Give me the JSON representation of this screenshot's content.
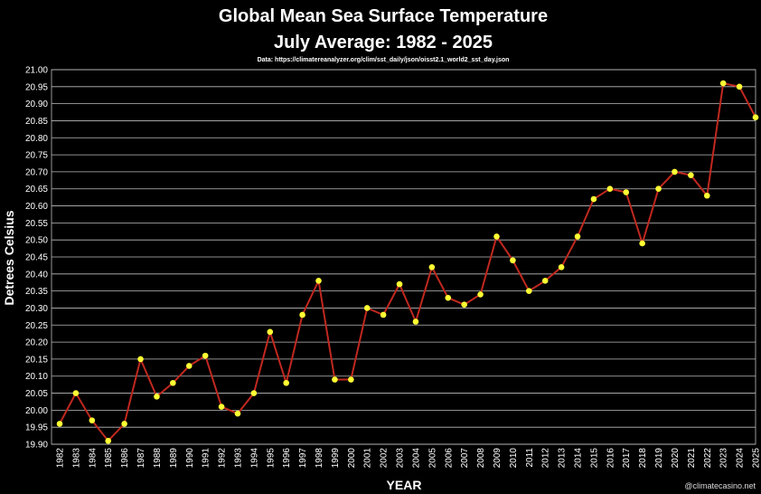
{
  "chart_data": {
    "type": "line",
    "title": "Global Mean Sea Surface Temperature",
    "subtitle": "July Average:  1982 - 2025",
    "source": "Data: https://climatereanalyzer.org/clim/sst_daily/json/oisst2.1_world2_sst_day.json",
    "xlabel": "YEAR",
    "ylabel": "Detrees Celsius",
    "watermark": "@climatecasino.net",
    "ylim": [
      19.9,
      21.0
    ],
    "ytick_step": 0.05,
    "grid": true,
    "line_color": "#c0281f",
    "marker_color": "#ffff33",
    "x": [
      1982,
      1983,
      1984,
      1985,
      1986,
      1987,
      1988,
      1989,
      1990,
      1991,
      1992,
      1993,
      1994,
      1995,
      1996,
      1997,
      1998,
      1999,
      2000,
      2001,
      2002,
      2003,
      2004,
      2005,
      2006,
      2007,
      2008,
      2009,
      2010,
      2011,
      2012,
      2013,
      2014,
      2015,
      2016,
      2017,
      2018,
      2019,
      2020,
      2021,
      2022,
      2023,
      2024,
      2025
    ],
    "values": [
      19.96,
      20.05,
      19.97,
      19.91,
      19.96,
      20.15,
      20.04,
      20.08,
      20.13,
      20.16,
      20.01,
      19.99,
      20.05,
      20.23,
      20.08,
      20.28,
      20.38,
      20.09,
      20.09,
      20.3,
      20.28,
      20.37,
      20.26,
      20.42,
      20.33,
      20.31,
      20.34,
      20.51,
      20.44,
      20.35,
      20.38,
      20.42,
      20.51,
      20.62,
      20.65,
      20.64,
      20.49,
      20.65,
      20.7,
      20.69,
      20.63,
      20.96,
      20.95,
      20.86
    ]
  }
}
